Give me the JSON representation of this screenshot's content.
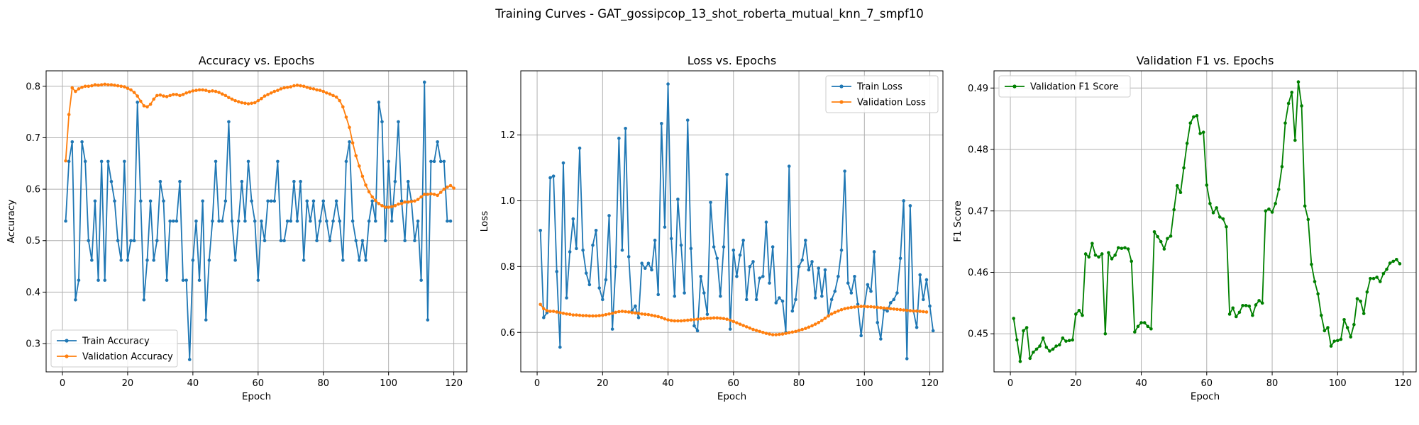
{
  "figure": {
    "title": "Training Curves - GAT_gossipcop_13_shot_roberta_mutual_knn_7_smpf10"
  },
  "colors": {
    "train": "#1f77b4",
    "validation": "#ff7f0e",
    "f1": "#008000",
    "grid": "#b0b0b0"
  },
  "chart_data": [
    {
      "type": "line",
      "title": "Accuracy vs. Epochs",
      "xlabel": "Epoch",
      "ylabel": "Accuracy",
      "xlim": [
        -5,
        124
      ],
      "ylim": [
        0.245,
        0.83
      ],
      "xticks": [
        0,
        20,
        40,
        60,
        80,
        100,
        120
      ],
      "yticks": [
        0.3,
        0.4,
        0.5,
        0.6,
        0.7,
        0.8
      ],
      "grid": true,
      "legend": "lower-left",
      "series": [
        {
          "name": "Train Accuracy",
          "color": "#1f77b4",
          "values": [
            0.538,
            0.654,
            0.692,
            0.385,
            0.423,
            0.692,
            0.654,
            0.5,
            0.462,
            0.577,
            0.423,
            0.654,
            0.423,
            0.654,
            0.615,
            0.577,
            0.5,
            0.462,
            0.654,
            0.462,
            0.5,
            0.5,
            0.769,
            0.577,
            0.385,
            0.462,
            0.577,
            0.462,
            0.5,
            0.615,
            0.577,
            0.423,
            0.538,
            0.538,
            0.538,
            0.615,
            0.423,
            0.423,
            0.269,
            0.462,
            0.538,
            0.423,
            0.577,
            0.346,
            0.462,
            0.538,
            0.654,
            0.538,
            0.538,
            0.577,
            0.731,
            0.538,
            0.462,
            0.538,
            0.615,
            0.538,
            0.654,
            0.577,
            0.538,
            0.423,
            0.538,
            0.5,
            0.577,
            0.577,
            0.577,
            0.654,
            0.5,
            0.5,
            0.538,
            0.538,
            0.615,
            0.538,
            0.615,
            0.462,
            0.577,
            0.538,
            0.577,
            0.5,
            0.538,
            0.577,
            0.538,
            0.5,
            0.538,
            0.577,
            0.538,
            0.462,
            0.654,
            0.692,
            0.538,
            0.5,
            0.462,
            0.5,
            0.462,
            0.538,
            0.577,
            0.538,
            0.769,
            0.731,
            0.5,
            0.654,
            0.538,
            0.615,
            0.731,
            0.577,
            0.5,
            0.615,
            0.577,
            0.5,
            0.538,
            0.423,
            0.808,
            0.346,
            0.654,
            0.654,
            0.692,
            0.654,
            0.654,
            0.538,
            0.538
          ]
        },
        {
          "name": "Validation Accuracy",
          "color": "#ff7f0e",
          "values": [
            0.655,
            0.745,
            0.797,
            0.79,
            0.795,
            0.798,
            0.8,
            0.8,
            0.801,
            0.803,
            0.802,
            0.803,
            0.804,
            0.803,
            0.803,
            0.802,
            0.801,
            0.8,
            0.799,
            0.796,
            0.793,
            0.788,
            0.781,
            0.771,
            0.762,
            0.76,
            0.765,
            0.775,
            0.782,
            0.783,
            0.781,
            0.78,
            0.782,
            0.784,
            0.784,
            0.782,
            0.784,
            0.787,
            0.789,
            0.791,
            0.792,
            0.793,
            0.793,
            0.792,
            0.79,
            0.791,
            0.79,
            0.788,
            0.785,
            0.782,
            0.778,
            0.775,
            0.772,
            0.77,
            0.768,
            0.767,
            0.766,
            0.767,
            0.768,
            0.772,
            0.776,
            0.781,
            0.784,
            0.787,
            0.79,
            0.792,
            0.795,
            0.797,
            0.798,
            0.799,
            0.801,
            0.802,
            0.801,
            0.8,
            0.798,
            0.796,
            0.795,
            0.793,
            0.792,
            0.79,
            0.787,
            0.785,
            0.782,
            0.779,
            0.772,
            0.76,
            0.74,
            0.72,
            0.69,
            0.665,
            0.645,
            0.625,
            0.608,
            0.595,
            0.585,
            0.578,
            0.572,
            0.568,
            0.565,
            0.565,
            0.566,
            0.568,
            0.571,
            0.572,
            0.575,
            0.575,
            0.576,
            0.577,
            0.58,
            0.585,
            0.59,
            0.59,
            0.591,
            0.59,
            0.588,
            0.594,
            0.6,
            0.604,
            0.607,
            0.602
          ]
        }
      ]
    },
    {
      "type": "line",
      "title": "Loss vs. Epochs",
      "xlabel": "Epoch",
      "ylabel": "Loss",
      "xlim": [
        -5,
        124
      ],
      "ylim": [
        0.48,
        1.395
      ],
      "xticks": [
        0,
        20,
        40,
        60,
        80,
        100,
        120
      ],
      "yticks": [
        0.6,
        0.8,
        1.0,
        1.2
      ],
      "grid": true,
      "legend": "upper-right",
      "series": [
        {
          "name": "Train Loss",
          "color": "#1f77b4",
          "values": [
            0.91,
            0.645,
            0.66,
            1.07,
            1.075,
            0.785,
            0.555,
            1.115,
            0.705,
            0.845,
            0.945,
            0.855,
            1.16,
            0.85,
            0.78,
            0.745,
            0.865,
            0.91,
            0.735,
            0.7,
            0.76,
            0.955,
            0.61,
            0.8,
            1.19,
            0.85,
            1.22,
            0.83,
            0.665,
            0.68,
            0.645,
            0.81,
            0.795,
            0.81,
            0.79,
            0.88,
            0.715,
            1.235,
            0.92,
            1.355,
            0.885,
            0.71,
            1.005,
            0.865,
            0.72,
            1.245,
            0.855,
            0.62,
            0.605,
            0.77,
            0.72,
            0.655,
            0.995,
            0.86,
            0.825,
            0.71,
            0.86,
            1.08,
            0.61,
            0.85,
            0.77,
            0.835,
            0.88,
            0.7,
            0.8,
            0.815,
            0.7,
            0.765,
            0.77,
            0.935,
            0.75,
            0.86,
            0.69,
            0.705,
            0.695,
            0.6,
            1.105,
            0.665,
            0.7,
            0.8,
            0.82,
            0.88,
            0.79,
            0.815,
            0.705,
            0.795,
            0.71,
            0.79,
            0.65,
            0.7,
            0.725,
            0.77,
            0.85,
            1.09,
            0.75,
            0.72,
            0.77,
            0.685,
            0.59,
            0.68,
            0.745,
            0.725,
            0.845,
            0.63,
            0.58,
            0.67,
            0.665,
            0.69,
            0.7,
            0.72,
            0.825,
            1.0,
            0.52,
            0.985,
            0.665,
            0.615,
            0.775,
            0.7,
            0.76,
            0.68,
            0.605
          ]
        },
        {
          "name": "Validation Loss",
          "color": "#ff7f0e",
          "values": [
            0.685,
            0.672,
            0.666,
            0.664,
            0.664,
            0.662,
            0.66,
            0.658,
            0.656,
            0.655,
            0.653,
            0.653,
            0.652,
            0.651,
            0.651,
            0.65,
            0.65,
            0.65,
            0.651,
            0.652,
            0.654,
            0.656,
            0.658,
            0.661,
            0.663,
            0.664,
            0.663,
            0.662,
            0.66,
            0.659,
            0.658,
            0.656,
            0.655,
            0.654,
            0.652,
            0.65,
            0.648,
            0.645,
            0.641,
            0.638,
            0.636,
            0.635,
            0.635,
            0.635,
            0.636,
            0.637,
            0.638,
            0.639,
            0.64,
            0.641,
            0.642,
            0.643,
            0.643,
            0.644,
            0.644,
            0.643,
            0.642,
            0.64,
            0.637,
            0.633,
            0.629,
            0.625,
            0.621,
            0.617,
            0.613,
            0.609,
            0.606,
            0.603,
            0.6,
            0.597,
            0.595,
            0.593,
            0.593,
            0.594,
            0.595,
            0.597,
            0.599,
            0.601,
            0.603,
            0.606,
            0.609,
            0.612,
            0.616,
            0.62,
            0.625,
            0.63,
            0.636,
            0.643,
            0.65,
            0.656,
            0.661,
            0.665,
            0.669,
            0.672,
            0.674,
            0.676,
            0.677,
            0.678,
            0.679,
            0.679,
            0.678,
            0.678,
            0.677,
            0.676,
            0.675,
            0.674,
            0.673,
            0.672,
            0.671,
            0.67,
            0.669,
            0.668,
            0.667,
            0.666,
            0.665,
            0.665,
            0.664,
            0.663,
            0.662
          ]
        }
      ]
    },
    {
      "type": "line",
      "title": "Validation F1 vs. Epochs",
      "xlabel": "Epoch",
      "ylabel": "F1 Score",
      "xlim": [
        -5,
        124
      ],
      "ylim": [
        0.4438,
        0.4928
      ],
      "xticks": [
        0,
        20,
        40,
        60,
        80,
        100,
        120
      ],
      "yticks": [
        0.45,
        0.46,
        0.47,
        0.48,
        0.49
      ],
      "grid": true,
      "legend": "upper-left",
      "series": [
        {
          "name": "Validation F1 Score",
          "color": "#008000",
          "values": [
            0.4525,
            0.449,
            0.4455,
            0.4505,
            0.451,
            0.446,
            0.447,
            0.4475,
            0.448,
            0.4493,
            0.4478,
            0.4472,
            0.4475,
            0.448,
            0.4482,
            0.4493,
            0.4488,
            0.4489,
            0.449,
            0.4532,
            0.4538,
            0.453,
            0.463,
            0.4625,
            0.4647,
            0.4628,
            0.4625,
            0.463,
            0.45,
            0.4632,
            0.4622,
            0.4628,
            0.464,
            0.4639,
            0.464,
            0.4638,
            0.4618,
            0.4503,
            0.4512,
            0.4518,
            0.4518,
            0.4512,
            0.4508,
            0.4666,
            0.4658,
            0.465,
            0.4638,
            0.4655,
            0.4659,
            0.4702,
            0.4741,
            0.473,
            0.477,
            0.481,
            0.4843,
            0.4853,
            0.4855,
            0.4826,
            0.4828,
            0.4742,
            0.4712,
            0.4697,
            0.4705,
            0.469,
            0.4687,
            0.4674,
            0.4532,
            0.4542,
            0.4528,
            0.4535,
            0.4546,
            0.4546,
            0.4545,
            0.453,
            0.4547,
            0.4554,
            0.455,
            0.47,
            0.4703,
            0.4698,
            0.4712,
            0.4735,
            0.4772,
            0.4843,
            0.4875,
            0.4893,
            0.4815,
            0.491,
            0.4871,
            0.4708,
            0.4686,
            0.4613,
            0.4585,
            0.4565,
            0.453,
            0.4505,
            0.451,
            0.448,
            0.4488,
            0.4489,
            0.4491,
            0.4523,
            0.451,
            0.4495,
            0.4515,
            0.4557,
            0.4553,
            0.4533,
            0.4568,
            0.459,
            0.459,
            0.4592,
            0.4585,
            0.4598,
            0.4605,
            0.4615,
            0.4618,
            0.4621,
            0.4614
          ]
        }
      ]
    }
  ]
}
